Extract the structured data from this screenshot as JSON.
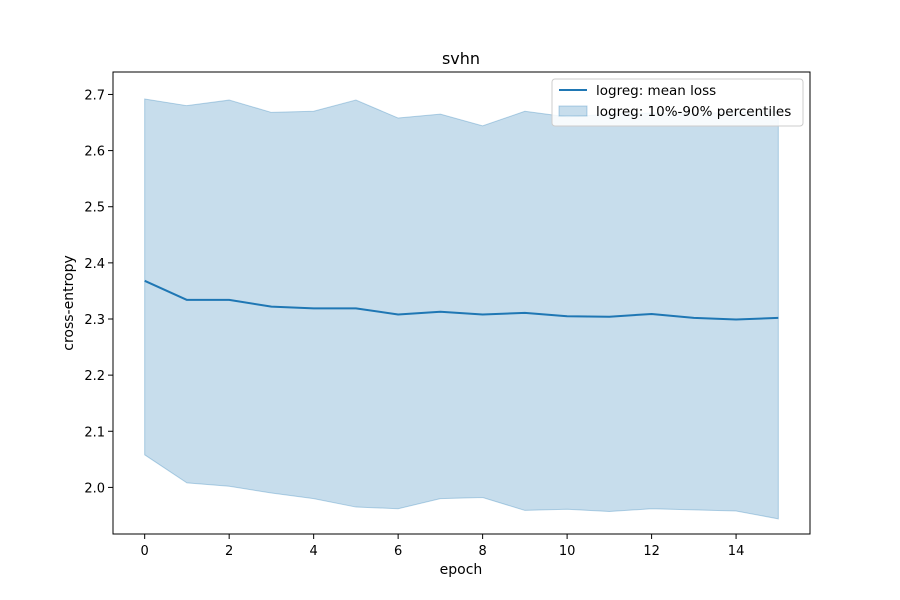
{
  "chart_data": {
    "type": "line",
    "title": "svhn",
    "xlabel": "epoch",
    "ylabel": "cross-entropy",
    "xlim": [
      -0.75,
      15.75
    ],
    "ylim": [
      1.917,
      2.74
    ],
    "xticks": [
      0,
      2,
      4,
      6,
      8,
      10,
      12,
      14
    ],
    "yticks": [
      2.0,
      2.1,
      2.2,
      2.3,
      2.4,
      2.5,
      2.6,
      2.7
    ],
    "grid": false,
    "legend_position": "top-right",
    "x": [
      0,
      1,
      2,
      3,
      4,
      5,
      6,
      7,
      8,
      9,
      10,
      11,
      12,
      13,
      14,
      15
    ],
    "series": [
      {
        "name": "logreg: mean loss",
        "kind": "line",
        "color": "#1f77b4",
        "values": [
          2.368,
          2.334,
          2.334,
          2.322,
          2.319,
          2.319,
          2.308,
          2.313,
          2.308,
          2.311,
          2.305,
          2.304,
          2.309,
          2.302,
          2.299,
          2.302
        ]
      },
      {
        "name": "logreg: 10%-90% percentiles",
        "kind": "band",
        "color": "#1f77b4",
        "fill_opacity": 0.25,
        "lower": [
          2.058,
          2.008,
          2.002,
          1.99,
          1.98,
          1.965,
          1.962,
          1.98,
          1.982,
          1.959,
          1.961,
          1.957,
          1.962,
          1.96,
          1.958,
          1.944
        ],
        "upper": [
          2.692,
          2.68,
          2.69,
          2.668,
          2.67,
          2.69,
          2.658,
          2.665,
          2.644,
          2.67,
          2.66,
          2.665,
          2.667,
          2.666,
          2.668,
          2.67
        ]
      }
    ]
  }
}
